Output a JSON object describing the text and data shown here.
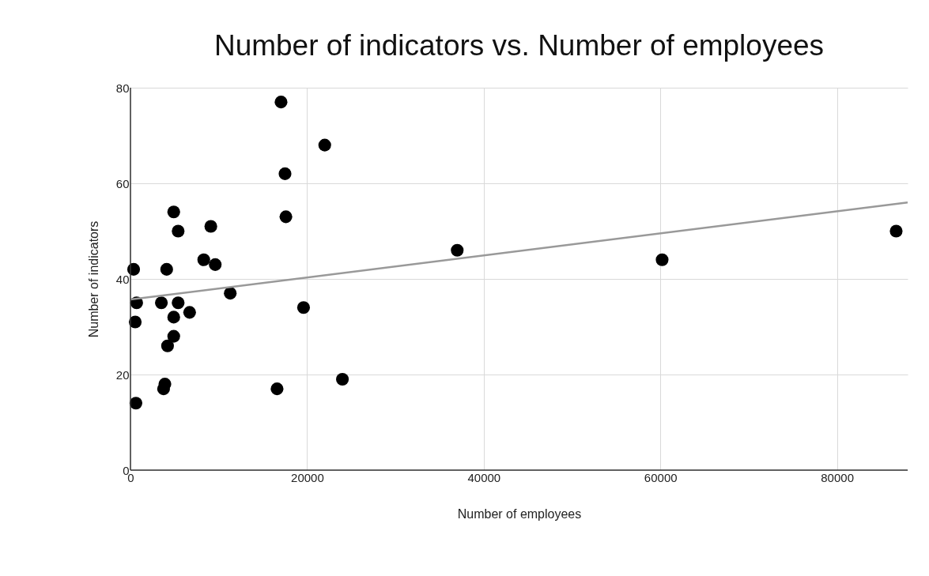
{
  "chart_data": {
    "type": "scatter",
    "title": "Number of indicators vs. Number of employees",
    "xlabel": "Number of employees",
    "ylabel": "Number of indicators",
    "xlim": [
      0,
      88000
    ],
    "ylim": [
      0,
      80
    ],
    "xticks": [
      0,
      20000,
      40000,
      60000,
      80000
    ],
    "yticks": [
      0,
      20,
      40,
      60,
      80
    ],
    "grid": true,
    "marker": "circle",
    "series": [
      {
        "color": "#000000",
        "x": [
          4900,
          5400,
          9100,
          17600,
          8300,
          9600,
          360,
          4100,
          11300,
          700,
          3500,
          5400,
          19600,
          6700,
          4900,
          540,
          4900,
          4200,
          3900,
          3750,
          16600,
          24000,
          620,
          17050,
          17500,
          22000,
          37000,
          60200,
          86700
        ],
        "values": [
          54,
          50,
          51,
          53,
          44,
          43,
          42,
          42,
          37,
          35,
          35,
          35,
          34,
          33,
          32,
          31,
          28,
          26,
          18,
          17,
          17,
          19,
          14,
          77,
          62,
          68,
          46,
          44,
          50
        ]
      },
      {
        "type": "line",
        "color": "#999999",
        "marker": "none",
        "x": [
          0,
          88000
        ],
        "values": [
          35.7,
          56.0
        ]
      }
    ]
  }
}
